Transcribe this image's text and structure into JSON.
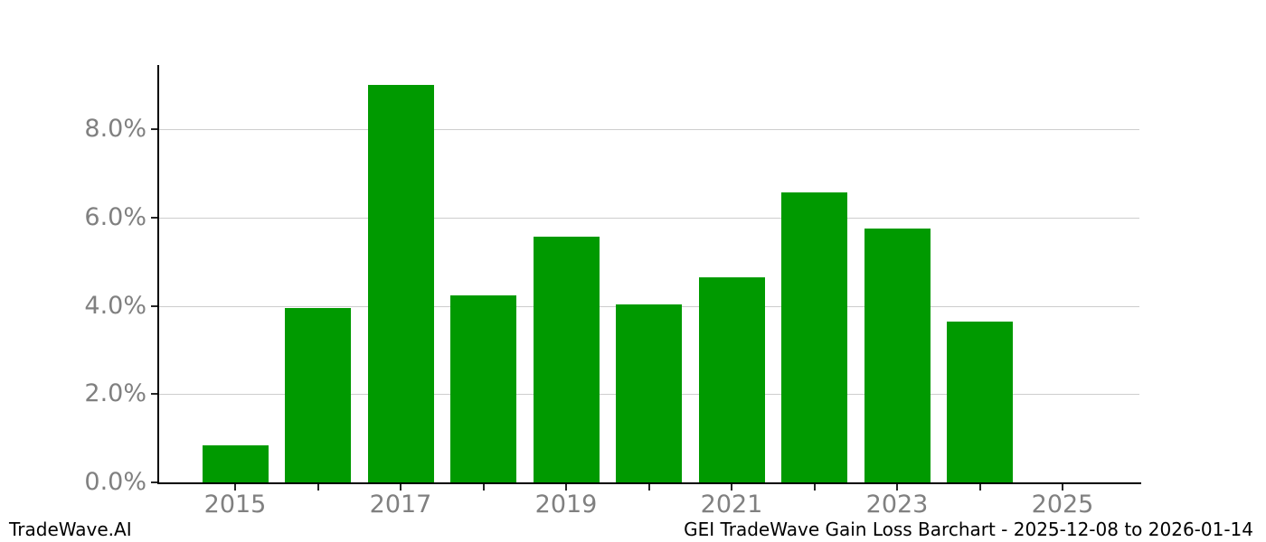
{
  "footer": {
    "brand": "TradeWave.AI",
    "title": "GEI TradeWave Gain Loss Barchart - 2025-12-08 to 2026-01-14"
  },
  "chart_data": {
    "type": "bar",
    "title": "GEI TradeWave Gain Loss Barchart - 2025-12-08 to 2026-01-14",
    "watermark": "TradeWave.AI",
    "xlabel": "",
    "ylabel": "",
    "unit": "percent",
    "categories": [
      "2015",
      "2016",
      "2017",
      "2018",
      "2019",
      "2020",
      "2021",
      "2022",
      "2023",
      "2024"
    ],
    "values": [
      0.85,
      3.95,
      9.01,
      4.24,
      5.57,
      4.04,
      4.65,
      6.57,
      5.76,
      3.65
    ],
    "ylim": [
      0,
      9.5
    ],
    "grid": "horizontal-only",
    "legend": "none",
    "y_ticks": [
      {
        "value": 0,
        "label": "0.0%"
      },
      {
        "value": 2,
        "label": "2.0%"
      },
      {
        "value": 4,
        "label": "4.0%"
      },
      {
        "value": 6,
        "label": "6.0%"
      },
      {
        "value": 8,
        "label": "8.0%"
      }
    ],
    "x_ticks": [
      {
        "year": 2015,
        "label": "2015"
      },
      {
        "year": 2016,
        "label": ""
      },
      {
        "year": 2017,
        "label": "2017"
      },
      {
        "year": 2018,
        "label": ""
      },
      {
        "year": 2019,
        "label": "2019"
      },
      {
        "year": 2020,
        "label": ""
      },
      {
        "year": 2021,
        "label": "2021"
      },
      {
        "year": 2022,
        "label": ""
      },
      {
        "year": 2023,
        "label": "2023"
      },
      {
        "year": 2024,
        "label": ""
      },
      {
        "year": 2025,
        "label": "2025"
      }
    ],
    "colors": {
      "bar": "#009a00",
      "tick_label": "#808080",
      "gridline": "#cdcdcd",
      "axis": "#000000",
      "footer_text": "#000000"
    }
  }
}
